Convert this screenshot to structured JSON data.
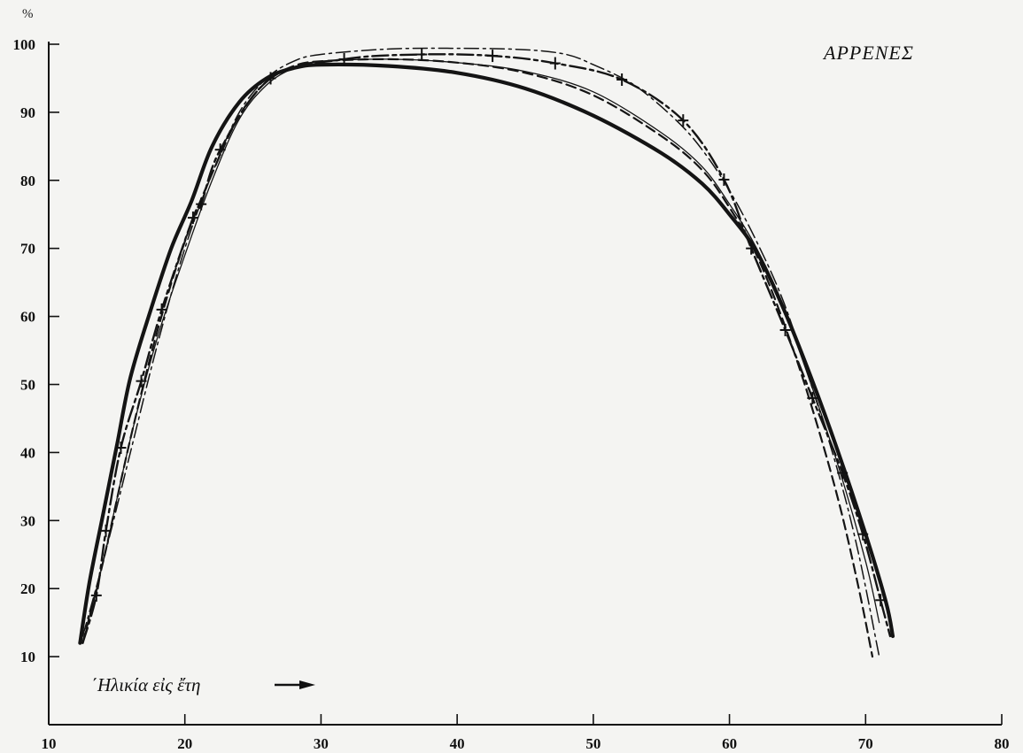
{
  "chart_data": {
    "type": "line",
    "title": "ΑΡΡΕΝΕΣ",
    "xlabel": "΄Ηλικία εἰς ἔτη",
    "ylabel": "%",
    "xlim": [
      10,
      80
    ],
    "ylim": [
      0,
      100
    ],
    "x_ticks": [
      "10",
      "20",
      "30",
      "40",
      "50",
      "60",
      "70",
      "80"
    ],
    "y_ticks": [
      "10",
      "20",
      "30",
      "40",
      "50",
      "60",
      "70",
      "80",
      "90",
      "100"
    ],
    "grid": false,
    "series": [
      {
        "style": "solid-thick",
        "points": [
          [
            12.3,
            12
          ],
          [
            13,
            21
          ],
          [
            14,
            31
          ],
          [
            15,
            41
          ],
          [
            16,
            51
          ],
          [
            17.5,
            61
          ],
          [
            19,
            70
          ],
          [
            20.5,
            77
          ],
          [
            22,
            85
          ],
          [
            24,
            91.5
          ],
          [
            26,
            95
          ],
          [
            28,
            96.5
          ],
          [
            30,
            97
          ],
          [
            35,
            96.8
          ],
          [
            40,
            95.8
          ],
          [
            45,
            93.5
          ],
          [
            50,
            89.5
          ],
          [
            55,
            84
          ],
          [
            58,
            79.5
          ],
          [
            60,
            75
          ],
          [
            62,
            69.5
          ],
          [
            64,
            61
          ],
          [
            66,
            51
          ],
          [
            68,
            40
          ],
          [
            70,
            28
          ],
          [
            71.5,
            18
          ],
          [
            72,
            13
          ]
        ]
      },
      {
        "style": "solid-thin",
        "points": [
          [
            12.5,
            12
          ],
          [
            14,
            24
          ],
          [
            16,
            42
          ],
          [
            18,
            57
          ],
          [
            20,
            69
          ],
          [
            22,
            80
          ],
          [
            24,
            89
          ],
          [
            26,
            94
          ],
          [
            28,
            96.5
          ],
          [
            30,
            97.5
          ],
          [
            35,
            97.8
          ],
          [
            40,
            97.3
          ],
          [
            45,
            96
          ],
          [
            50,
            93
          ],
          [
            55,
            87
          ],
          [
            58,
            82
          ],
          [
            60,
            76.5
          ],
          [
            62,
            70
          ],
          [
            64,
            61
          ],
          [
            66,
            50
          ],
          [
            68,
            38
          ],
          [
            70,
            24
          ],
          [
            71,
            15
          ]
        ]
      },
      {
        "style": "dashed",
        "points": [
          [
            12.5,
            12
          ],
          [
            14,
            24
          ],
          [
            16,
            42
          ],
          [
            18,
            58
          ],
          [
            20,
            71
          ],
          [
            22,
            81
          ],
          [
            24,
            89.5
          ],
          [
            26,
            94.5
          ],
          [
            28,
            96.8
          ],
          [
            30,
            97.5
          ],
          [
            35,
            97.8
          ],
          [
            40,
            97.3
          ],
          [
            45,
            95.8
          ],
          [
            50,
            92.5
          ],
          [
            55,
            86.5
          ],
          [
            58,
            81.5
          ],
          [
            60,
            76
          ],
          [
            62,
            69
          ],
          [
            64,
            59
          ],
          [
            66,
            47
          ],
          [
            68,
            33
          ],
          [
            69.5,
            20
          ],
          [
            70.5,
            10
          ]
        ]
      },
      {
        "style": "dash-dot",
        "points": [
          [
            12.5,
            13
          ],
          [
            14,
            24
          ],
          [
            16,
            40
          ],
          [
            18,
            56
          ],
          [
            20,
            70
          ],
          [
            22,
            81
          ],
          [
            24,
            90
          ],
          [
            26,
            95
          ],
          [
            28,
            97.5
          ],
          [
            30,
            98.5
          ],
          [
            35,
            99.3
          ],
          [
            40,
            99.4
          ],
          [
            45,
            99.2
          ],
          [
            48,
            98.5
          ],
          [
            50,
            97
          ],
          [
            53,
            94
          ],
          [
            56,
            89
          ],
          [
            58,
            84.5
          ],
          [
            60,
            78.5
          ],
          [
            62,
            71
          ],
          [
            64,
            62
          ],
          [
            66,
            50
          ],
          [
            68,
            37
          ],
          [
            69.5,
            25
          ],
          [
            71,
            10
          ]
        ]
      },
      {
        "style": "dash-dot-cross",
        "points": [
          [
            12.5,
            12
          ],
          [
            13.5,
            19
          ],
          [
            14.2,
            28.5
          ],
          [
            15.3,
            40.7
          ],
          [
            16.8,
            50.5
          ],
          [
            18.3,
            61
          ],
          [
            20.6,
            74.5
          ],
          [
            21.2,
            76.5
          ],
          [
            22.6,
            84.5
          ],
          [
            26.3,
            95
          ],
          [
            31.7,
            97.8
          ],
          [
            37.4,
            98.5
          ],
          [
            42.6,
            98.3
          ],
          [
            47.2,
            97.2
          ],
          [
            52.1,
            94.8
          ],
          [
            56.6,
            88.8
          ],
          [
            59.6,
            80.1
          ],
          [
            61.6,
            70
          ],
          [
            64.1,
            58
          ],
          [
            66.1,
            48
          ],
          [
            68.3,
            37
          ],
          [
            69.8,
            28
          ],
          [
            71.1,
            18.3
          ],
          [
            71.8,
            13
          ]
        ],
        "markers": [
          [
            13.5,
            19
          ],
          [
            14.2,
            28.5
          ],
          [
            15.3,
            40.7
          ],
          [
            16.8,
            50.5
          ],
          [
            18.3,
            61
          ],
          [
            20.6,
            74.5
          ],
          [
            21.2,
            76.5
          ],
          [
            22.6,
            84.5
          ],
          [
            26.3,
            95
          ],
          [
            31.7,
            97.8
          ],
          [
            37.4,
            98.5
          ],
          [
            42.6,
            98.3
          ],
          [
            47.2,
            97.2
          ],
          [
            52.1,
            94.8
          ],
          [
            56.6,
            88.8
          ],
          [
            59.6,
            80.1
          ],
          [
            61.6,
            70
          ],
          [
            64.1,
            58
          ],
          [
            66.1,
            48
          ],
          [
            68.3,
            37
          ],
          [
            69.8,
            28
          ],
          [
            71.1,
            18.3
          ]
        ]
      }
    ]
  }
}
